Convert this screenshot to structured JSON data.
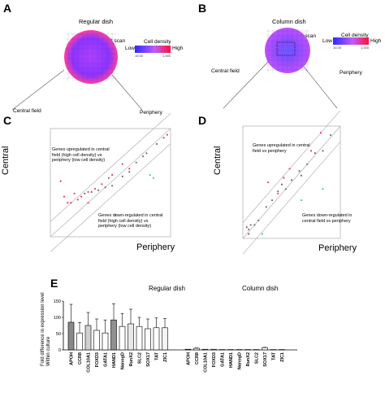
{
  "panels": {
    "A": {
      "letter": "A",
      "title": "Regular dish",
      "well_scan": "Well scan",
      "central_field": "Central field",
      "periphery": "Periphery",
      "legend": {
        "title": "Cell density",
        "low": "Low",
        "high": "High",
        "min": "10.00",
        "max": "1,000"
      }
    },
    "B": {
      "letter": "B",
      "title": "Column dish",
      "well_scan": "Well scan",
      "central_field": "Central field",
      "periphery": "Periphery",
      "legend": {
        "title": "Cell density",
        "low": "Low",
        "high": "High",
        "min": "10.00",
        "max": "1,000"
      }
    },
    "C": {
      "letter": "C",
      "ylabel_big": "Central",
      "xlabel_big": "Periphery",
      "annotation_up": "Genes upregulated in central field (high cell density) vs periphery (low cell density)",
      "annotation_down": "Genes down-regulated in central field (high cell density) vs periphery (low cell density)"
    },
    "D": {
      "letter": "D",
      "ylabel_big": "Central",
      "xlabel_big": "Periphery",
      "annotation_up": "Genes upregulated in central field vs periphery",
      "annotation_down": "Genes down-regulated in central field vs periphery"
    },
    "E": {
      "letter": "E",
      "group_regular": "Regular dish",
      "group_column": "Column dish",
      "ylabel": "Fold difference in expression level Within culture"
    }
  },
  "colors": {
    "up": "#e8405a",
    "down": "#4cd07a",
    "neutral": "#707070",
    "line": "#b0b0b0"
  },
  "chart_data": [
    {
      "type": "scatter",
      "panel": "C",
      "xlim": [
        -0.5,
        3.0
      ],
      "ylim": [
        -0.5,
        3.0
      ],
      "series": [
        {
          "color": "#707070",
          "points": [
            [
              0.5,
              0.9
            ],
            [
              0.7,
              0.95
            ],
            [
              0.9,
              1.0
            ],
            [
              1.1,
              1.1
            ],
            [
              1.3,
              1.15
            ],
            [
              1.6,
              1.45
            ],
            [
              1.8,
              1.6
            ],
            [
              2.0,
              1.9
            ],
            [
              2.3,
              2.2
            ],
            [
              2.6,
              2.5
            ],
            [
              2.8,
              2.7
            ],
            [
              2.2,
              2.1
            ]
          ]
        },
        {
          "color": "#e8405a",
          "points": [
            [
              -0.2,
              1.3
            ],
            [
              -0.1,
              0.8
            ],
            [
              0.1,
              0.6
            ],
            [
              0.2,
              0.9
            ],
            [
              0.3,
              0.7
            ],
            [
              0.4,
              0.8
            ],
            [
              0.6,
              0.95
            ],
            [
              0.8,
              1.05
            ],
            [
              1.0,
              1.2
            ],
            [
              1.2,
              1.4
            ],
            [
              1.3,
              1.5
            ],
            [
              1.6,
              1.85
            ],
            [
              1.8,
              1.7
            ],
            [
              2.9,
              2.8
            ],
            [
              0.0,
              0.6
            ],
            [
              0.6,
              0.6
            ]
          ]
        },
        {
          "color": "#4cd07a",
          "points": [
            [
              1.4,
              0.2
            ],
            [
              2.4,
              1.5
            ],
            [
              2.5,
              1.4
            ]
          ]
        }
      ]
    },
    {
      "type": "scatter",
      "panel": "D",
      "xlim": [
        -2.0,
        3.0
      ],
      "ylim": [
        -2.0,
        3.0
      ],
      "series": [
        {
          "color": "#707070",
          "points": [
            [
              -1.8,
              -1.5
            ],
            [
              -1.6,
              -1.4
            ],
            [
              -1.4,
              -1.4
            ],
            [
              -1.2,
              -1.2
            ],
            [
              -0.8,
              -0.6
            ],
            [
              -0.5,
              -0.3
            ],
            [
              -0.2,
              0.1
            ],
            [
              0.2,
              0.2
            ],
            [
              0.5,
              0.6
            ],
            [
              0.9,
              1.0
            ],
            [
              1.3,
              1.3
            ],
            [
              1.7,
              1.8
            ],
            [
              2.1,
              1.9
            ],
            [
              2.5,
              2.6
            ],
            [
              0.0,
              0.4
            ],
            [
              1.0,
              0.8
            ],
            [
              -1.7,
              -1.8
            ]
          ]
        },
        {
          "color": "#e8405a",
          "points": [
            [
              -0.7,
              0.5
            ],
            [
              -0.2,
              0.0
            ],
            [
              0.1,
              0.7
            ],
            [
              0.4,
              1.1
            ],
            [
              1.5,
              1.9
            ],
            [
              2.0,
              2.7
            ],
            [
              -1.7,
              -1.6
            ]
          ]
        },
        {
          "color": "#4cd07a",
          "points": [
            [
              1.0,
              -0.3
            ],
            [
              2.1,
              0.2
            ],
            [
              -1.0,
              -1.8
            ]
          ]
        }
      ]
    },
    {
      "type": "bar",
      "panel": "E",
      "ylabel": "Fold difference in expression level Within culture",
      "ylim": [
        0,
        150
      ],
      "yticks": [
        0,
        50,
        100,
        150
      ],
      "categories": [
        "APOH",
        "CCR8",
        "COL10A1",
        "FOXD3",
        "GATA1",
        "HAND1",
        "NanogD",
        "RunX2",
        "SLC2",
        "SOX17",
        "TAT",
        "ZIC1"
      ],
      "series": [
        {
          "name": "Regular dish",
          "values": [
            85,
            52,
            75,
            60,
            52,
            92,
            72,
            80,
            72,
            65,
            68,
            68
          ],
          "errors": [
            55,
            32,
            40,
            35,
            40,
            50,
            40,
            45,
            28,
            30,
            30,
            28
          ]
        },
        {
          "name": "Column dish",
          "values": [
            2,
            5,
            2,
            2,
            1,
            1,
            1,
            1,
            1,
            7,
            1,
            1
          ],
          "errors": [
            0,
            1,
            0,
            0,
            0,
            0,
            0,
            0,
            0,
            1,
            0,
            0
          ]
        }
      ]
    }
  ]
}
